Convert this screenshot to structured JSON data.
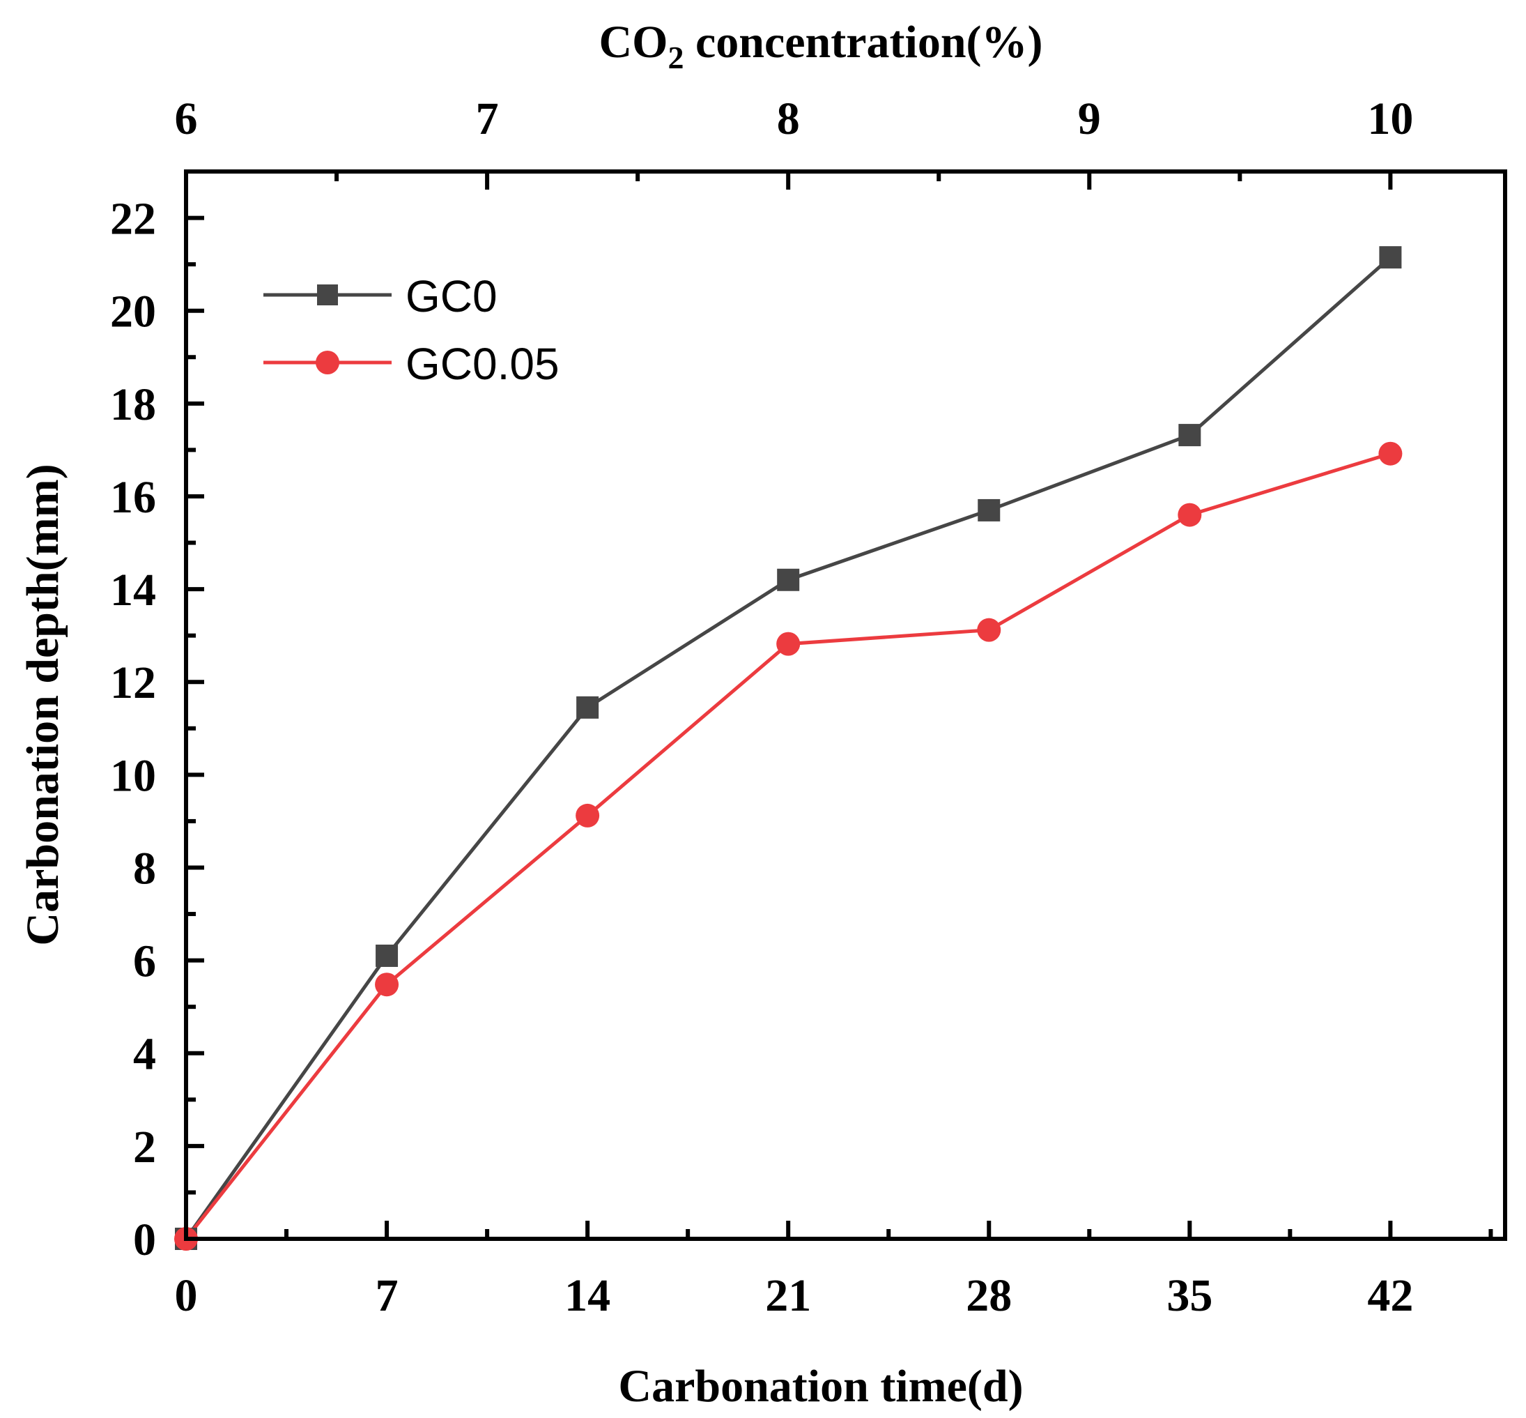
{
  "chart_data": {
    "type": "line",
    "title": "",
    "xlabel": "Carbonation time(d)",
    "top_xlabel": {
      "prefix": "CO",
      "subscript": "2",
      "suffix": " concentration(%)"
    },
    "ylabel": "Carbonation depth(mm)",
    "xlim": [
      0,
      46
    ],
    "ylim": [
      0,
      23
    ],
    "x_ticks": [
      0,
      7,
      14,
      21,
      28,
      35,
      42
    ],
    "x_tick_labels": [
      "0",
      "7",
      "14",
      "21",
      "28",
      "35",
      "42"
    ],
    "x_minor_ticks": [
      3.5,
      10.5,
      17.5,
      24.5,
      31.5,
      38.5,
      45.5
    ],
    "top_ticks": [
      6,
      7,
      8,
      9,
      10
    ],
    "top_tick_labels": [
      "6",
      "7",
      "8",
      "9",
      "10"
    ],
    "top_ticks_at_x": [
      0,
      10.5,
      21,
      31.5,
      42
    ],
    "top_minor_at_x": [
      5.25,
      15.75,
      26.25,
      36.75
    ],
    "y_ticks": [
      0,
      2,
      4,
      6,
      8,
      10,
      12,
      14,
      16,
      18,
      20,
      22
    ],
    "y_tick_labels": [
      "0",
      "2",
      "4",
      "6",
      "8",
      "10",
      "12",
      "14",
      "16",
      "18",
      "20",
      "22"
    ],
    "y_minor_ticks": [
      1,
      3,
      5,
      7,
      9,
      11,
      13,
      15,
      17,
      19,
      21
    ],
    "legend_position": "top-left",
    "grid": false,
    "x": [
      0,
      7,
      14,
      21,
      28,
      35,
      42
    ],
    "series": [
      {
        "name": "GC0",
        "color": "#464646",
        "marker": "square",
        "values": [
          0,
          6.1,
          11.45,
          14.2,
          15.7,
          17.32,
          21.15
        ]
      },
      {
        "name": "GC0.05",
        "color": "#ec3b3f",
        "marker": "circle",
        "values": [
          0,
          5.48,
          9.12,
          12.82,
          13.12,
          15.6,
          16.92
        ]
      }
    ]
  }
}
